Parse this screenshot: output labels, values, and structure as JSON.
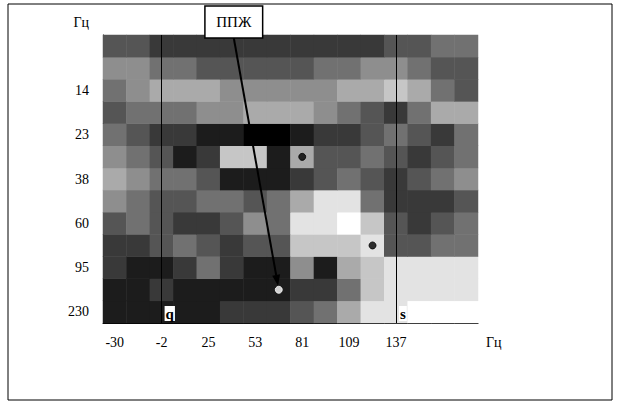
{
  "chart_data": {
    "type": "heatmap",
    "x_label": "Гц",
    "y_label": "Гц",
    "x_categories": [
      "-30",
      null,
      "-2",
      null,
      "25",
      null,
      "53",
      null,
      "81",
      null,
      "109",
      null,
      "137",
      null,
      null,
      null
    ],
    "y_categories": [
      "230",
      null,
      "95",
      null,
      "60",
      null,
      "38",
      null,
      "23",
      null,
      "14",
      null,
      null
    ],
    "cells": [
      [
        8,
        8,
        8,
        8,
        8,
        7,
        7,
        7,
        6,
        5,
        3,
        1,
        1,
        0,
        0,
        0
      ],
      [
        8,
        8,
        7,
        8,
        8,
        8,
        8,
        8,
        7,
        7,
        5,
        2,
        1,
        1,
        1,
        1
      ],
      [
        7,
        8,
        8,
        7,
        5,
        7,
        8,
        8,
        4,
        8,
        3,
        2,
        1,
        1,
        1,
        1
      ],
      [
        7,
        7,
        6,
        5,
        6,
        7,
        6,
        6,
        2,
        2,
        2,
        1,
        6,
        6,
        5,
        5
      ],
      [
        6,
        5,
        6,
        7,
        7,
        6,
        4,
        5,
        1,
        1,
        0,
        2,
        6,
        7,
        6,
        5
      ],
      [
        4,
        5,
        6,
        6,
        5,
        5,
        6,
        5,
        3,
        1,
        1,
        5,
        7,
        7,
        7,
        6
      ],
      [
        3,
        4,
        5,
        5,
        6,
        8,
        8,
        8,
        7,
        6,
        5,
        6,
        7,
        6,
        5,
        4
      ],
      [
        4,
        5,
        6,
        8,
        7,
        2,
        2,
        8,
        3,
        6,
        6,
        5,
        6,
        7,
        6,
        5
      ],
      [
        5,
        6,
        7,
        7,
        8,
        8,
        9,
        9,
        8,
        7,
        7,
        6,
        5,
        6,
        7,
        5
      ],
      [
        6,
        5,
        5,
        5,
        4,
        4,
        3,
        3,
        3,
        4,
        5,
        6,
        7,
        5,
        3,
        3
      ],
      [
        5,
        4,
        3,
        3,
        3,
        4,
        4,
        4,
        4,
        4,
        3,
        3,
        2,
        3,
        5,
        6
      ],
      [
        4,
        4,
        5,
        5,
        6,
        6,
        6,
        6,
        6,
        5,
        5,
        4,
        4,
        5,
        6,
        6
      ],
      [
        6,
        6,
        7,
        7,
        7,
        7,
        7,
        7,
        7,
        7,
        7,
        7,
        6,
        6,
        5,
        5
      ]
    ],
    "value_range": [
      0,
      9
    ],
    "colors": [
      "#ffffff",
      "#000000"
    ],
    "lines": [
      {
        "label": "q",
        "x": "-2"
      },
      {
        "label": "s",
        "x": "137"
      }
    ],
    "points": [
      {
        "col": 8,
        "row": 7,
        "color": "#000000"
      },
      {
        "col": 11,
        "row": 3,
        "color": "#000000"
      },
      {
        "col": 7,
        "row": 1,
        "color": "#ffffff"
      }
    ],
    "annotations": [
      {
        "text": "ППЖ",
        "col": 7,
        "row": 1
      }
    ],
    "grid": false
  }
}
